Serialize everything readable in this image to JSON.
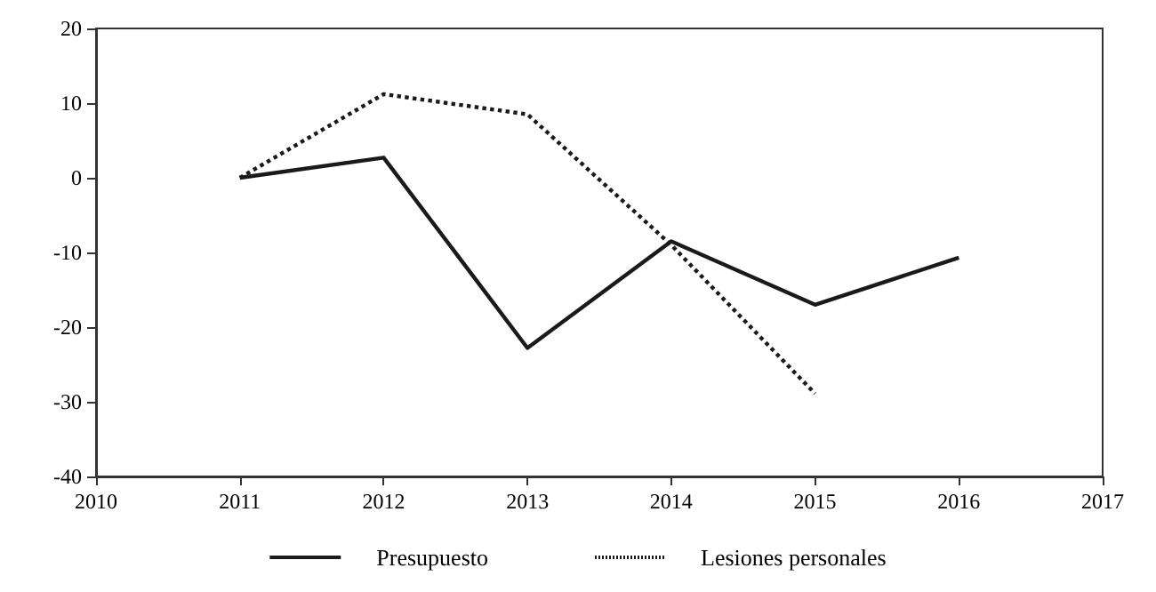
{
  "chart_data": {
    "type": "line",
    "x": [
      2011,
      2012,
      2013,
      2014,
      2015,
      2016
    ],
    "series": [
      {
        "name": "Presupuesto",
        "color": "#1a1a1a",
        "line_style": "solid",
        "values": [
          0,
          2.7,
          -22.8,
          -8.5,
          -17,
          -10.7
        ]
      },
      {
        "name": "Lesiones personales",
        "color": "#1a1a1a",
        "line_style": "dotted",
        "values": [
          0,
          11.2,
          8.5,
          -9,
          -28.9,
          null
        ]
      }
    ],
    "xlim": [
      2010,
      2017
    ],
    "xticks": [
      2010,
      2011,
      2012,
      2013,
      2014,
      2015,
      2016,
      2017
    ],
    "ylim": [
      -40,
      20
    ],
    "yticks": [
      -40,
      -30,
      -20,
      -10,
      0,
      10,
      20
    ],
    "grid": false,
    "legend": "bottom",
    "marker": "none"
  }
}
